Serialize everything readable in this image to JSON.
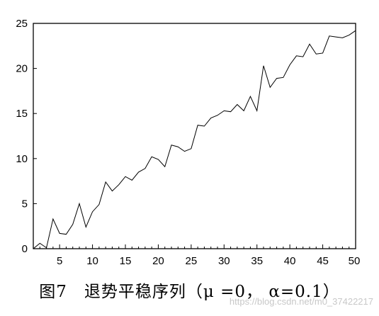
{
  "caption": "图7　退势平稳序列（μ =0， α=0.1）",
  "watermark": "https://blog.csdn.net/m0_37422217",
  "chart_data": {
    "type": "line",
    "title": "",
    "xlabel": "",
    "ylabel": "",
    "xlim": [
      1,
      50
    ],
    "ylim": [
      0,
      25
    ],
    "x_ticks": [
      5,
      10,
      15,
      20,
      25,
      30,
      35,
      40,
      45,
      50
    ],
    "y_ticks": [
      0,
      5,
      10,
      15,
      20,
      25
    ],
    "grid": false,
    "line_color": "#000000",
    "series": [
      {
        "x": [
          1,
          2,
          3,
          4,
          5,
          6,
          7,
          8,
          9,
          10,
          11,
          12,
          13,
          14,
          15,
          16,
          17,
          18,
          19,
          20,
          21,
          22,
          23,
          24,
          25,
          26,
          27,
          28,
          29,
          30,
          31,
          32,
          33,
          34,
          35,
          36,
          37,
          38,
          39,
          40,
          41,
          42,
          43,
          44,
          45,
          46,
          47,
          48,
          49,
          50
        ],
        "y": [
          0,
          0.6,
          0.1,
          3.3,
          1.7,
          1.6,
          2.7,
          5.0,
          2.4,
          4.1,
          4.9,
          7.4,
          6.4,
          7.1,
          8.0,
          7.6,
          8.5,
          8.9,
          10.2,
          9.9,
          9.1,
          11.5,
          11.3,
          10.8,
          11.1,
          13.7,
          13.6,
          14.5,
          14.8,
          15.3,
          15.2,
          16.0,
          15.3,
          16.9,
          15.3,
          20.3,
          17.9,
          18.9,
          19.0,
          20.4,
          21.4,
          21.3,
          22.7,
          21.6,
          21.7,
          23.6,
          23.5,
          23.4,
          23.7,
          24.2
        ]
      }
    ]
  }
}
